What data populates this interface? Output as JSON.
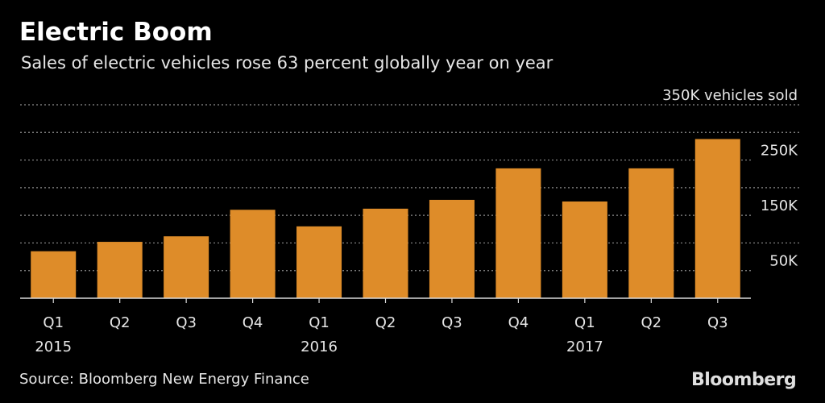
{
  "header": {
    "title": "Electric Boom",
    "subtitle": "Sales of electric vehicles rose 63 percent globally year on year"
  },
  "footer": {
    "source": "Source: Bloomberg New Energy Finance",
    "logo": "Bloomberg"
  },
  "colors": {
    "background": "#000000",
    "bar": "#DE8C29",
    "text": "#E6E6E6",
    "grid": "#8C8C8C"
  },
  "chart_data": {
    "type": "bar",
    "categories": [
      "Q1",
      "Q2",
      "Q3",
      "Q4",
      "Q1",
      "Q2",
      "Q3",
      "Q4",
      "Q1",
      "Q2",
      "Q3"
    ],
    "years": [
      {
        "label": "2015",
        "index": 0
      },
      {
        "label": "2016",
        "index": 4
      },
      {
        "label": "2017",
        "index": 8
      }
    ],
    "values": [
      85000,
      102000,
      112000,
      160000,
      130000,
      162000,
      178000,
      235000,
      175000,
      235000,
      288000
    ],
    "ylim": [
      0,
      350000
    ],
    "gridlines": [
      50000,
      100000,
      150000,
      200000,
      250000,
      300000,
      350000
    ],
    "yticks": [
      {
        "value": 50000,
        "label": "50K"
      },
      {
        "value": 150000,
        "label": "150K"
      },
      {
        "value": 250000,
        "label": "250K"
      },
      {
        "value": 350000,
        "label": "350K vehicles sold"
      }
    ],
    "grid": true,
    "grid_style": "dotted",
    "y_axis_side": "right"
  }
}
